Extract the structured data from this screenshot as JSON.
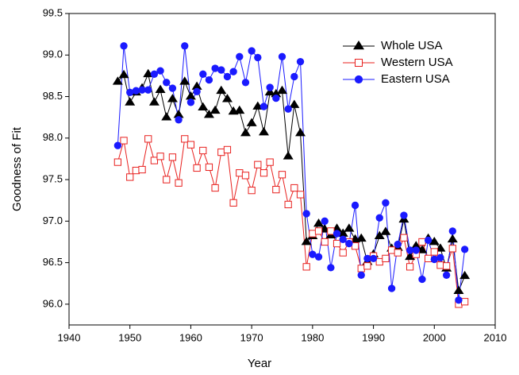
{
  "chart_data": {
    "type": "line",
    "x_label": "Year",
    "y_label": "Goodness of Fit",
    "x": [
      1948,
      1949,
      1950,
      1951,
      1952,
      1953,
      1954,
      1955,
      1956,
      1957,
      1958,
      1959,
      1960,
      1961,
      1962,
      1963,
      1964,
      1965,
      1966,
      1967,
      1968,
      1969,
      1970,
      1971,
      1972,
      1973,
      1974,
      1975,
      1976,
      1977,
      1978,
      1979,
      1980,
      1981,
      1982,
      1983,
      1984,
      1985,
      1986,
      1987,
      1988,
      1989,
      1990,
      1991,
      1992,
      1993,
      1994,
      1995,
      1996,
      1997,
      1998,
      1999,
      2000,
      2001,
      2002,
      2003,
      2004,
      2005
    ],
    "series": [
      {
        "name": "Whole USA",
        "color": "#000000",
        "marker": "triangle",
        "values": [
          98.68,
          98.76,
          98.43,
          98.55,
          98.6,
          98.77,
          98.43,
          98.58,
          98.25,
          98.47,
          98.28,
          98.68,
          98.5,
          98.62,
          98.37,
          98.28,
          98.33,
          98.57,
          98.47,
          98.32,
          98.33,
          98.06,
          98.18,
          98.38,
          98.07,
          98.55,
          98.53,
          98.57,
          97.78,
          98.4,
          98.06,
          96.75,
          96.82,
          96.97,
          96.9,
          96.83,
          96.91,
          96.85,
          96.91,
          96.78,
          96.79,
          96.51,
          96.6,
          96.82,
          96.87,
          96.67,
          96.68,
          97.02,
          96.57,
          96.7,
          96.65,
          96.79,
          96.75,
          96.67,
          96.43,
          96.78,
          96.16,
          96.34
        ]
      },
      {
        "name": "Western USA",
        "color": "#e8201e",
        "marker": "open-square",
        "values": [
          97.71,
          97.97,
          97.53,
          97.61,
          97.62,
          97.99,
          97.73,
          97.78,
          97.5,
          97.77,
          97.46,
          97.99,
          97.92,
          97.64,
          97.85,
          97.65,
          97.4,
          97.83,
          97.86,
          97.22,
          97.58,
          97.55,
          97.37,
          97.68,
          97.58,
          97.71,
          97.38,
          97.56,
          97.2,
          97.4,
          97.32,
          96.45,
          96.85,
          96.88,
          96.75,
          96.88,
          96.73,
          96.62,
          96.75,
          96.7,
          96.43,
          96.46,
          96.58,
          96.51,
          96.55,
          96.65,
          96.62,
          96.8,
          96.45,
          96.6,
          96.75,
          96.55,
          96.63,
          96.47,
          96.46,
          96.67,
          96.0,
          96.03
        ]
      },
      {
        "name": "Eastern USA",
        "color": "#1a1aff",
        "marker": "circle",
        "values": [
          97.91,
          99.11,
          98.55,
          98.57,
          98.58,
          98.58,
          98.77,
          98.81,
          98.67,
          98.6,
          98.22,
          99.11,
          98.43,
          98.56,
          98.77,
          98.7,
          98.84,
          98.82,
          98.74,
          98.8,
          98.98,
          98.67,
          99.05,
          98.97,
          98.38,
          98.61,
          98.48,
          98.98,
          98.35,
          98.74,
          98.92,
          97.09,
          96.6,
          96.57,
          97.0,
          96.44,
          96.85,
          96.78,
          96.73,
          97.19,
          96.35,
          96.55,
          96.55,
          97.04,
          97.22,
          96.19,
          96.72,
          97.07,
          96.65,
          96.65,
          96.3,
          96.77,
          96.54,
          96.56,
          96.35,
          96.88,
          96.05,
          96.66
        ]
      }
    ],
    "xlim": [
      1940,
      2010
    ],
    "xticks": [
      1940,
      1950,
      1960,
      1970,
      1980,
      1990,
      2000,
      2010
    ],
    "ylim": [
      95.75,
      99.5
    ],
    "yticks": [
      {
        "value": 96,
        "label": "96.0"
      },
      {
        "value": 96.5,
        "label": "96.5"
      },
      {
        "value": 97,
        "label": "97.0"
      },
      {
        "value": 97.5,
        "label": "97.5"
      },
      {
        "value": 98,
        "label": "98.0"
      },
      {
        "value": 98.5,
        "label": "98.5"
      },
      {
        "value": 99,
        "label": "99.0"
      },
      {
        "value": 99.5,
        "label": "99.5"
      }
    ],
    "legend": "upper-right"
  }
}
